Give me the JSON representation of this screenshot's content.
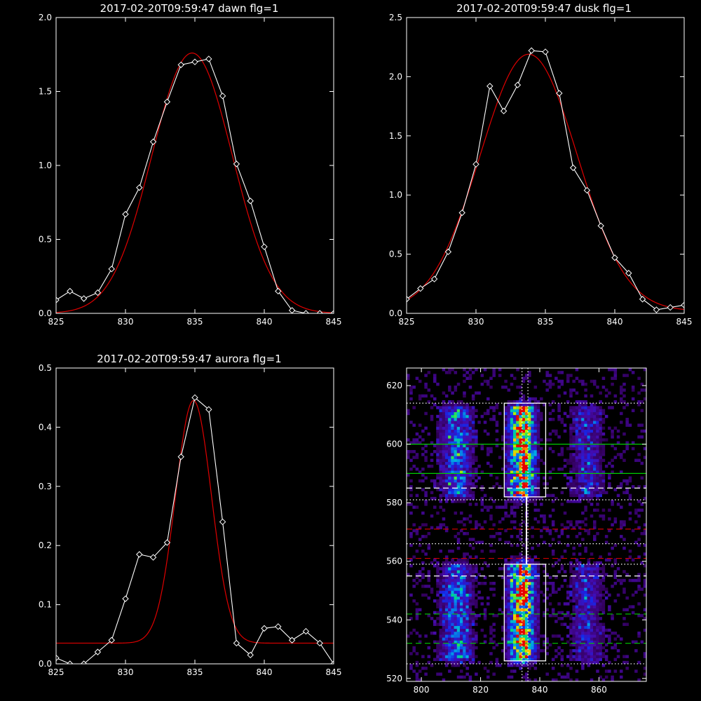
{
  "chart_data": [
    {
      "type": "line",
      "title": "2017-02-20T09:59:47 dawn flg=1",
      "xlim": [
        825,
        845
      ],
      "ylim": [
        0,
        2.0
      ],
      "xticks": [
        "825",
        "830",
        "835",
        "840",
        "845"
      ],
      "yticks": [
        "0.0",
        "0.5",
        "1.0",
        "1.5",
        "2.0"
      ],
      "series": [
        {
          "style": "observed",
          "color": "#ffffff",
          "marker": "diamond",
          "x": [
            825,
            826,
            827,
            828,
            829,
            830,
            831,
            832,
            833,
            834,
            835,
            836,
            837,
            838,
            839,
            840,
            841,
            842,
            843,
            844,
            845
          ],
          "y": [
            0.09,
            0.15,
            0.1,
            0.14,
            0.3,
            0.67,
            0.85,
            1.16,
            1.43,
            1.68,
            1.7,
            1.72,
            1.47,
            1.01,
            0.76,
            0.45,
            0.15,
            0.02,
            0.0,
            0.0,
            0.0
          ]
        },
        {
          "style": "fit",
          "color": "#e00000",
          "gaussian": {
            "center": 834.8,
            "sigma": 2.9,
            "amplitude": 1.76,
            "offset": 0.0
          }
        }
      ]
    },
    {
      "type": "line",
      "title": "2017-02-20T09:59:47 dusk flg=1",
      "xlim": [
        825,
        845
      ],
      "ylim": [
        0,
        2.5
      ],
      "xticks": [
        "825",
        "830",
        "835",
        "840",
        "845"
      ],
      "yticks": [
        "0.0",
        "0.5",
        "1.0",
        "1.5",
        "2.0",
        "2.5"
      ],
      "series": [
        {
          "style": "observed",
          "color": "#ffffff",
          "marker": "diamond",
          "x": [
            825,
            826,
            827,
            828,
            829,
            830,
            831,
            832,
            833,
            834,
            835,
            836,
            837,
            838,
            839,
            840,
            841,
            842,
            843,
            844,
            845
          ],
          "y": [
            0.12,
            0.21,
            0.29,
            0.52,
            0.85,
            1.26,
            1.92,
            1.71,
            1.93,
            2.22,
            2.21,
            1.86,
            1.23,
            1.04,
            0.74,
            0.47,
            0.34,
            0.12,
            0.03,
            0.05,
            0.07
          ]
        },
        {
          "style": "fit",
          "color": "#e00000",
          "gaussian": {
            "center": 833.8,
            "sigma": 3.5,
            "amplitude": 2.17,
            "offset": 0.02
          }
        }
      ]
    },
    {
      "type": "line",
      "title": "2017-02-20T09:59:47 aurora flg=1",
      "xlim": [
        825,
        845
      ],
      "ylim": [
        0,
        0.5
      ],
      "xticks": [
        "825",
        "830",
        "835",
        "840",
        "845"
      ],
      "yticks": [
        "0.0",
        "0.1",
        "0.2",
        "0.3",
        "0.4",
        "0.5"
      ],
      "series": [
        {
          "style": "observed",
          "color": "#ffffff",
          "marker": "diamond",
          "x": [
            825,
            826,
            827,
            828,
            829,
            830,
            831,
            832,
            833,
            834,
            835,
            836,
            837,
            838,
            839,
            840,
            841,
            842,
            843,
            844,
            845
          ],
          "y": [
            0.01,
            0.0,
            0.0,
            0.02,
            0.04,
            0.11,
            0.185,
            0.18,
            0.205,
            0.35,
            0.45,
            0.43,
            0.24,
            0.035,
            0.015,
            0.06,
            0.063,
            0.04,
            0.055,
            0.035,
            0.0
          ]
        },
        {
          "style": "fit",
          "color": "#e00000",
          "gaussian": {
            "center": 834.9,
            "sigma": 1.3,
            "amplitude": 0.41,
            "offset": 0.035
          }
        }
      ]
    },
    {
      "type": "heatmap",
      "title": "",
      "xlim": [
        795,
        876
      ],
      "ylim": [
        519,
        626
      ],
      "xticks": [
        "800",
        "820",
        "840",
        "860"
      ],
      "yticks": [
        "520",
        "540",
        "560",
        "580",
        "600",
        "620"
      ],
      "colorscale": "rainbow",
      "bright_columns": [
        {
          "center": 812,
          "half_width": 6,
          "strength": 0.45
        },
        {
          "center": 834,
          "half_width": 5,
          "strength": 0.85
        },
        {
          "center": 856,
          "half_width": 6,
          "strength": 0.3
        }
      ],
      "bright_bands": [
        {
          "from": 526,
          "to": 558
        },
        {
          "from": 582,
          "to": 612
        }
      ],
      "boxes": [
        {
          "x0": 828,
          "x1": 842,
          "y0": 582,
          "y1": 614,
          "color": "#ffffff"
        },
        {
          "x0": 828,
          "x1": 842,
          "y0": 526,
          "y1": 559,
          "color": "#ffffff"
        }
      ],
      "vertical_lines": [
        {
          "x": 834,
          "style": "dotted",
          "color": "#ffffff"
        },
        {
          "x": 836,
          "style": "dotted",
          "color": "#ffffff"
        },
        {
          "x": 835.5,
          "style": "solid",
          "color": "#ffffff",
          "y0": 559,
          "y1": 582
        }
      ],
      "horizontal_lines": [
        {
          "y": 614,
          "style": "dotted",
          "color": "#ffffff"
        },
        {
          "y": 600,
          "style": "solid",
          "color": "#00cc00"
        },
        {
          "y": 590,
          "style": "solid",
          "color": "#00cc00"
        },
        {
          "y": 585,
          "style": "dashed",
          "color": "#ffffff"
        },
        {
          "y": 581,
          "style": "dotted",
          "color": "#ffffff"
        },
        {
          "y": 571,
          "style": "dashed",
          "color": "#cc0000"
        },
        {
          "y": 566,
          "style": "dotted",
          "color": "#ffffff"
        },
        {
          "y": 561,
          "style": "dashed",
          "color": "#cc0000"
        },
        {
          "y": 559,
          "style": "dotted",
          "color": "#ffffff"
        },
        {
          "y": 555,
          "style": "dashed",
          "color": "#ffffff"
        },
        {
          "y": 542,
          "style": "dashed",
          "color": "#00cc00"
        },
        {
          "y": 532,
          "style": "dashed",
          "color": "#00cc00"
        },
        {
          "y": 525,
          "style": "dotted",
          "color": "#ffffff"
        }
      ]
    }
  ]
}
